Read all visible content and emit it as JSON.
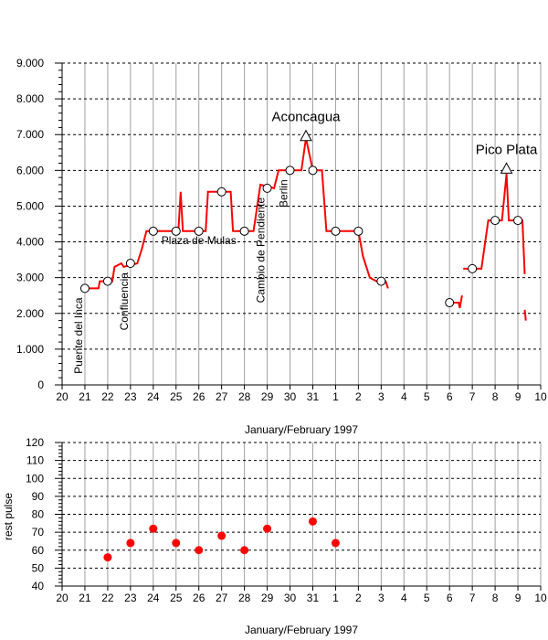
{
  "chart_data": [
    {
      "type": "line",
      "xlabel": "January/February 1997",
      "ylabel": "",
      "ylim": [
        0,
        9000
      ],
      "y_ticks": [
        "0",
        "1.000",
        "2.000",
        "3.000",
        "4.000",
        "5.000",
        "6.000",
        "7.000",
        "8.000",
        "9.000"
      ],
      "x_ticks": [
        "20",
        "21",
        "22",
        "23",
        "24",
        "25",
        "26",
        "27",
        "28",
        "29",
        "30",
        "31",
        "1",
        "2",
        "3",
        "4",
        "5",
        "6",
        "7",
        "8",
        "9",
        "10"
      ],
      "grid": true,
      "series": [
        {
          "color": "#ff0000",
          "segments": [
            [
              [
                21,
                2700
              ],
              [
                21.6,
                2700
              ],
              [
                21.65,
                2900
              ],
              [
                22.2,
                2900
              ],
              [
                22.3,
                3300
              ],
              [
                22.6,
                3400
              ],
              [
                22.7,
                3300
              ],
              [
                23.3,
                3400
              ],
              [
                23.5,
                3800
              ],
              [
                23.7,
                4300
              ],
              [
                24.5,
                4300
              ],
              [
                24.8,
                4300
              ],
              [
                25.1,
                4300
              ],
              [
                25.2,
                5400
              ],
              [
                25.3,
                4300
              ],
              [
                26.0,
                4300
              ],
              [
                26.3,
                4300
              ],
              [
                26.4,
                5400
              ],
              [
                27.4,
                5400
              ],
              [
                27.5,
                4300
              ],
              [
                28.2,
                4300
              ],
              [
                28.4,
                4300
              ],
              [
                28.7,
                5600
              ],
              [
                29.3,
                5500
              ],
              [
                29.5,
                6000
              ],
              [
                30.0,
                6000
              ],
              [
                30.5,
                6000
              ],
              [
                30.7,
                6900
              ],
              [
                31.0,
                6000
              ],
              [
                31.4,
                6000
              ],
              [
                31.6,
                4300
              ],
              [
                32.0,
                4300
              ],
              [
                33.0,
                4300
              ],
              [
                33.2,
                3600
              ],
              [
                33.5,
                3000
              ],
              [
                33.8,
                2900
              ],
              [
                34.2,
                2900
              ],
              [
                34.3,
                2700
              ]
            ],
            [
              [
                37.1,
                2300
              ],
              [
                37.4,
                2300
              ],
              [
                37.45,
                2150
              ],
              [
                37.55,
                2500
              ]
            ],
            [
              [
                37.6,
                3250
              ],
              [
                38.0,
                3250
              ],
              [
                38.4,
                3250
              ],
              [
                38.7,
                4600
              ],
              [
                39.0,
                4600
              ],
              [
                39.3,
                4600
              ],
              [
                39.5,
                5900
              ],
              [
                39.6,
                4600
              ],
              [
                40.1,
                4600
              ],
              [
                40.2,
                4600
              ],
              [
                40.3,
                3100
              ]
            ],
            [
              [
                40.3,
                2100
              ],
              [
                40.35,
                1800
              ]
            ]
          ]
        }
      ],
      "camps": [
        {
          "x": 21,
          "y": 2700,
          "label": "Puente del Inca"
        },
        {
          "x": 22,
          "y": 2900,
          "label": ""
        },
        {
          "x": 23,
          "y": 3400,
          "label": "Confluencia"
        },
        {
          "x": 24,
          "y": 4300,
          "label": ""
        },
        {
          "x": 25,
          "y": 4300,
          "label": ""
        },
        {
          "x": 26,
          "y": 4300,
          "label": "Plaza de Mulas"
        },
        {
          "x": 27,
          "y": 5400,
          "label": ""
        },
        {
          "x": 28,
          "y": 4300,
          "label": ""
        },
        {
          "x": 29,
          "y": 5500,
          "label": "Cambio de Pendiente"
        },
        {
          "x": 30,
          "y": 6000,
          "label": "Berlin"
        },
        {
          "x": 31,
          "y": 6000,
          "label": ""
        },
        {
          "x": 32,
          "y": 4300,
          "label": ""
        },
        {
          "x": 33,
          "y": 4300,
          "label": ""
        },
        {
          "x": 34,
          "y": 2900,
          "label": ""
        },
        {
          "x": 37,
          "y": 2300,
          "label": ""
        },
        {
          "x": 38,
          "y": 3250,
          "label": ""
        },
        {
          "x": 39,
          "y": 4600,
          "label": ""
        },
        {
          "x": 40,
          "y": 4600,
          "label": ""
        }
      ],
      "summits": [
        {
          "x": 30.7,
          "y": 6962,
          "label": "Aconcagua"
        },
        {
          "x": 39.5,
          "y": 6050,
          "label": "Pico Plata"
        }
      ]
    },
    {
      "type": "scatter",
      "xlabel": "January/February 1997",
      "ylabel": "rest pulse",
      "ylim": [
        40,
        120
      ],
      "y_ticks": [
        "40",
        "50",
        "60",
        "70",
        "80",
        "90",
        "100",
        "110",
        "120"
      ],
      "x_ticks": [
        "20",
        "21",
        "22",
        "23",
        "24",
        "25",
        "26",
        "27",
        "28",
        "29",
        "30",
        "31",
        "1",
        "2",
        "3",
        "4",
        "5",
        "6",
        "7",
        "8",
        "9",
        "10"
      ],
      "grid": true,
      "series": [
        {
          "color": "#ff0000",
          "points": [
            [
              22,
              56
            ],
            [
              23,
              64
            ],
            [
              24,
              72
            ],
            [
              25,
              64
            ],
            [
              26,
              60
            ],
            [
              27,
              68
            ],
            [
              28,
              60
            ],
            [
              29,
              72
            ],
            [
              31,
              76
            ],
            [
              32,
              64
            ]
          ]
        }
      ]
    }
  ]
}
